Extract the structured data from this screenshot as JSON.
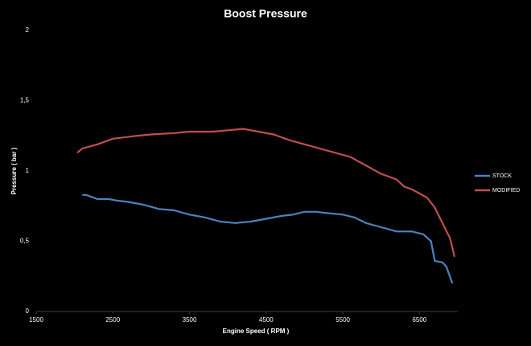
{
  "chart_data": {
    "type": "line",
    "title": "Boost Pressure",
    "x_label": "Engine Speed ( RPM )",
    "y_label": "Pressure ( bar )",
    "xlim": [
      1500,
      7000
    ],
    "xticks": [
      1500,
      2500,
      3500,
      4500,
      5500,
      6500
    ],
    "ylim": [
      0,
      2
    ],
    "yticks": [
      0,
      {
        "value": 0.5,
        "label": "0,5"
      },
      1,
      {
        "value": 1.5,
        "label": "1,5"
      },
      2
    ],
    "grid": false,
    "legend": "right",
    "series": [
      {
        "name": "STOCK",
        "color": "#4f81bd",
        "x": [
          2100,
          2150,
          2300,
          2450,
          2550,
          2700,
          2900,
          3100,
          3300,
          3500,
          3700,
          3900,
          4100,
          4300,
          4500,
          4700,
          4850,
          5000,
          5150,
          5300,
          5500,
          5650,
          5800,
          6000,
          6200,
          6400,
          6550,
          6650,
          6700,
          6800,
          6850,
          6930
        ],
        "values": [
          0.83,
          0.83,
          0.8,
          0.8,
          0.79,
          0.78,
          0.76,
          0.73,
          0.72,
          0.69,
          0.67,
          0.64,
          0.63,
          0.64,
          0.66,
          0.68,
          0.69,
          0.71,
          0.71,
          0.7,
          0.69,
          0.67,
          0.63,
          0.6,
          0.57,
          0.57,
          0.55,
          0.5,
          0.36,
          0.35,
          0.32,
          0.2
        ]
      },
      {
        "name": "MODIFIED",
        "color": "#c0504d",
        "x": [
          2035,
          2100,
          2300,
          2500,
          2800,
          3000,
          3300,
          3500,
          3800,
          4000,
          4200,
          4300,
          4400,
          4600,
          4800,
          5000,
          5200,
          5400,
          5600,
          5700,
          5800,
          5900,
          6000,
          6200,
          6300,
          6400,
          6500,
          6600,
          6700,
          6800,
          6900,
          6957
        ],
        "values": [
          1.13,
          1.16,
          1.19,
          1.23,
          1.25,
          1.26,
          1.27,
          1.28,
          1.28,
          1.29,
          1.3,
          1.29,
          1.28,
          1.26,
          1.22,
          1.19,
          1.16,
          1.13,
          1.1,
          1.07,
          1.04,
          1.01,
          0.98,
          0.94,
          0.89,
          0.87,
          0.84,
          0.81,
          0.74,
          0.63,
          0.52,
          0.39
        ]
      }
    ]
  }
}
